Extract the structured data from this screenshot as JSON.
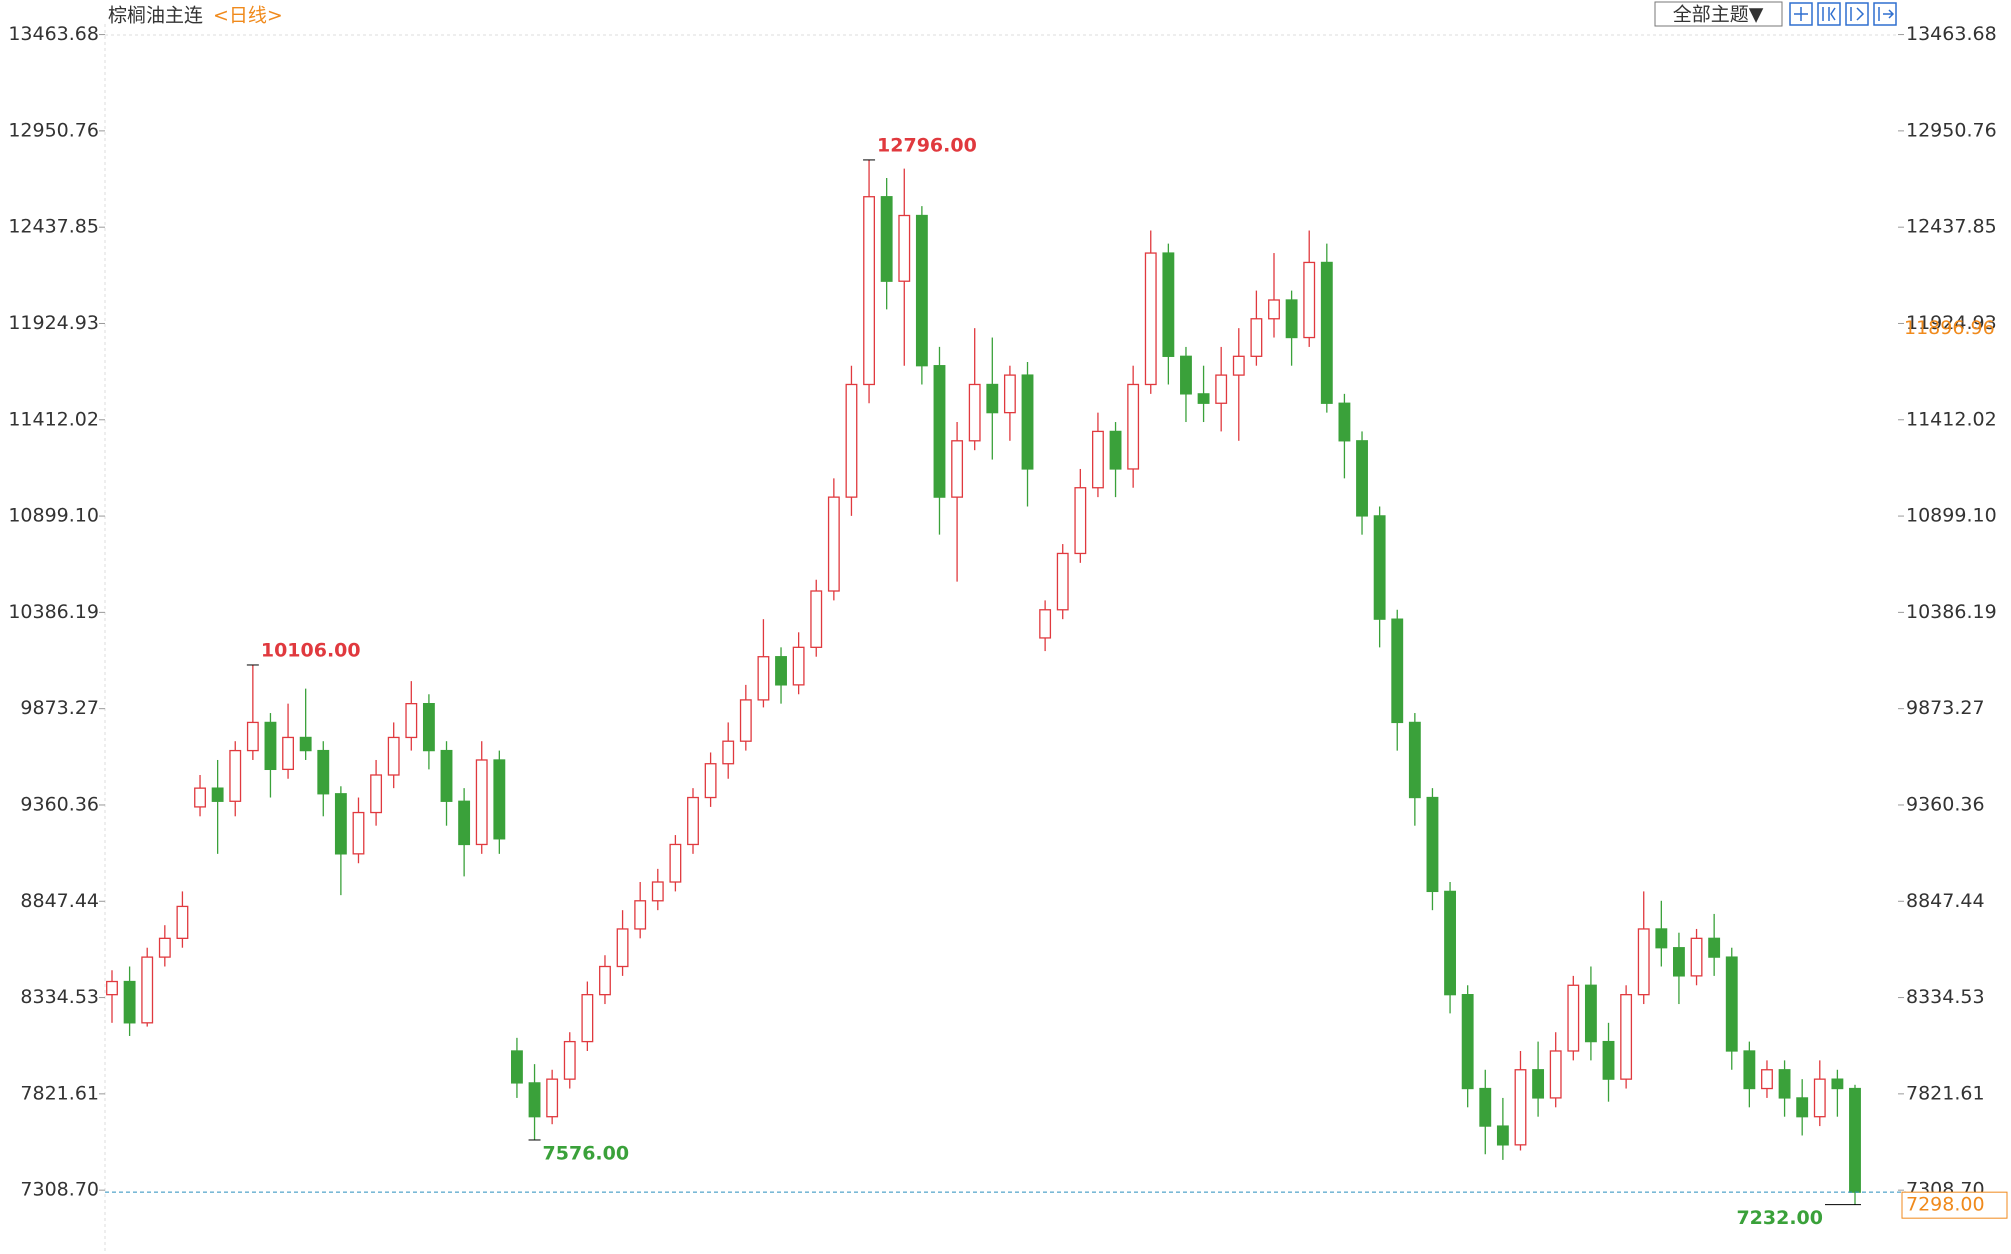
{
  "chart_data": {
    "type": "candlestick",
    "title": "棕榈油主连",
    "period": "<日线>",
    "ylim": [
      6990,
      13520
    ],
    "yticks": [
      13463.68,
      12950.76,
      12437.85,
      11924.93,
      11412.02,
      {
        "value": 10899.1,
        "label": "10899.10"
      },
      10386.19,
      9873.27,
      9360.36,
      8847.44,
      8334.53,
      7821.61,
      {
        "value": 7308.7,
        "label": "7308.70"
      }
    ],
    "grid": false,
    "up_color": "#e0393e",
    "down_color": "#3aa13a",
    "series": [
      {
        "name": "棕榈油主连",
        "ohlc": [
          [
            8350,
            8480,
            8200,
            8420
          ],
          [
            8420,
            8500,
            8130,
            8200
          ],
          [
            8200,
            8600,
            8180,
            8550
          ],
          [
            8550,
            8720,
            8500,
            8650
          ],
          [
            8650,
            8900,
            8600,
            8820
          ],
          [
            9350,
            9520,
            9300,
            9450
          ],
          [
            9450,
            9600,
            9100,
            9380
          ],
          [
            9380,
            9700,
            9300,
            9650
          ],
          [
            9650,
            10106,
            9600,
            9800
          ],
          [
            9800,
            9850,
            9400,
            9550
          ],
          [
            9550,
            9900,
            9500,
            9720
          ],
          [
            9720,
            9980,
            9600,
            9650
          ],
          [
            9650,
            9700,
            9300,
            9420
          ],
          [
            9420,
            9460,
            8880,
            9100
          ],
          [
            9100,
            9400,
            9050,
            9320
          ],
          [
            9320,
            9600,
            9250,
            9520
          ],
          [
            9520,
            9800,
            9450,
            9720
          ],
          [
            9720,
            10020,
            9650,
            9900
          ],
          [
            9900,
            9950,
            9550,
            9650
          ],
          [
            9650,
            9700,
            9250,
            9380
          ],
          [
            9380,
            9450,
            8980,
            9150
          ],
          [
            9150,
            9700,
            9100,
            9600
          ],
          [
            9600,
            9650,
            9100,
            9180
          ],
          [
            8050,
            8120,
            7800,
            7880
          ],
          [
            7880,
            7980,
            7576,
            7700
          ],
          [
            7700,
            7950,
            7660,
            7900
          ],
          [
            7900,
            8150,
            7850,
            8100
          ],
          [
            8100,
            8420,
            8050,
            8350
          ],
          [
            8350,
            8560,
            8300,
            8500
          ],
          [
            8500,
            8800,
            8450,
            8700
          ],
          [
            8700,
            8950,
            8650,
            8850
          ],
          [
            8850,
            9020,
            8800,
            8950
          ],
          [
            8950,
            9200,
            8900,
            9150
          ],
          [
            9150,
            9450,
            9100,
            9400
          ],
          [
            9400,
            9640,
            9350,
            9580
          ],
          [
            9580,
            9800,
            9500,
            9700
          ],
          [
            9700,
            10000,
            9650,
            9920
          ],
          [
            9920,
            10350,
            9880,
            10150
          ],
          [
            10150,
            10200,
            9900,
            10000
          ],
          [
            10000,
            10280,
            9950,
            10200
          ],
          [
            10200,
            10560,
            10150,
            10500
          ],
          [
            10500,
            11100,
            10450,
            11000
          ],
          [
            11000,
            11700,
            10900,
            11600
          ],
          [
            11600,
            12796,
            11500,
            12600
          ],
          [
            12600,
            12700,
            12000,
            12150
          ],
          [
            12150,
            12750,
            11700,
            12500
          ],
          [
            12500,
            12550,
            11600,
            11700
          ],
          [
            11700,
            11800,
            10800,
            11000
          ],
          [
            11000,
            11400,
            10550,
            11300
          ],
          [
            11300,
            11900,
            11250,
            11600
          ],
          [
            11600,
            11850,
            11200,
            11450
          ],
          [
            11450,
            11700,
            11300,
            11650
          ],
          [
            11650,
            11720,
            10950,
            11150
          ],
          [
            10250,
            10450,
            10180,
            10400
          ],
          [
            10400,
            10750,
            10350,
            10700
          ],
          [
            10700,
            11150,
            10650,
            11050
          ],
          [
            11050,
            11450,
            11000,
            11350
          ],
          [
            11350,
            11400,
            11000,
            11150
          ],
          [
            11150,
            11700,
            11050,
            11600
          ],
          [
            11600,
            12420,
            11550,
            12300
          ],
          [
            12300,
            12350,
            11600,
            11750
          ],
          [
            11750,
            11800,
            11400,
            11550
          ],
          [
            11550,
            11700,
            11400,
            11500
          ],
          [
            11500,
            11800,
            11350,
            11650
          ],
          [
            11650,
            11900,
            11300,
            11750
          ],
          [
            11750,
            12100,
            11700,
            11950
          ],
          [
            11950,
            12300,
            11850,
            12050
          ],
          [
            12050,
            12100,
            11700,
            11850
          ],
          [
            11850,
            12420,
            11800,
            12250
          ],
          [
            12250,
            12350,
            11450,
            11500
          ],
          [
            11500,
            11550,
            11100,
            11300
          ],
          [
            11300,
            11350,
            10800,
            10900
          ],
          [
            10900,
            10950,
            10200,
            10350
          ],
          [
            10350,
            10400,
            9650,
            9800
          ],
          [
            9800,
            9850,
            9250,
            9400
          ],
          [
            9400,
            9450,
            8800,
            8900
          ],
          [
            8900,
            8950,
            8250,
            8350
          ],
          [
            8350,
            8400,
            7750,
            7850
          ],
          [
            7850,
            7950,
            7500,
            7650
          ],
          [
            7650,
            7800,
            7470,
            7550
          ],
          [
            7550,
            8050,
            7520,
            7950
          ],
          [
            7950,
            8100,
            7700,
            7800
          ],
          [
            7800,
            8150,
            7750,
            8050
          ],
          [
            8050,
            8450,
            8000,
            8400
          ],
          [
            8400,
            8500,
            8000,
            8100
          ],
          [
            8100,
            8200,
            7780,
            7900
          ],
          [
            7900,
            8400,
            7850,
            8350
          ],
          [
            8350,
            8900,
            8300,
            8700
          ],
          [
            8700,
            8850,
            8500,
            8600
          ],
          [
            8600,
            8680,
            8300,
            8450
          ],
          [
            8450,
            8700,
            8400,
            8650
          ],
          [
            8650,
            8780,
            8450,
            8550
          ],
          [
            8550,
            8600,
            7950,
            8050
          ],
          [
            8050,
            8100,
            7750,
            7850
          ],
          [
            7850,
            8000,
            7800,
            7950
          ],
          [
            7950,
            8000,
            7700,
            7800
          ],
          [
            7800,
            7900,
            7600,
            7700
          ],
          [
            7700,
            8000,
            7650,
            7900
          ],
          [
            7900,
            7950,
            7700,
            7850
          ],
          [
            7850,
            7870,
            7232,
            7298
          ]
        ]
      }
    ],
    "annotations": [
      {
        "value": 10106,
        "label": "10106.00"
      },
      {
        "value": 12796,
        "label": "12796.00"
      },
      {
        "value": 7576,
        "label": "7576.00"
      },
      {
        "value": 7232,
        "label": "7232.00"
      }
    ],
    "cursor_price": 11896.96,
    "last_price": {
      "value": 7298,
      "label": "7298.00"
    }
  },
  "toolbar": {
    "theme_button": "全部主题▼"
  }
}
